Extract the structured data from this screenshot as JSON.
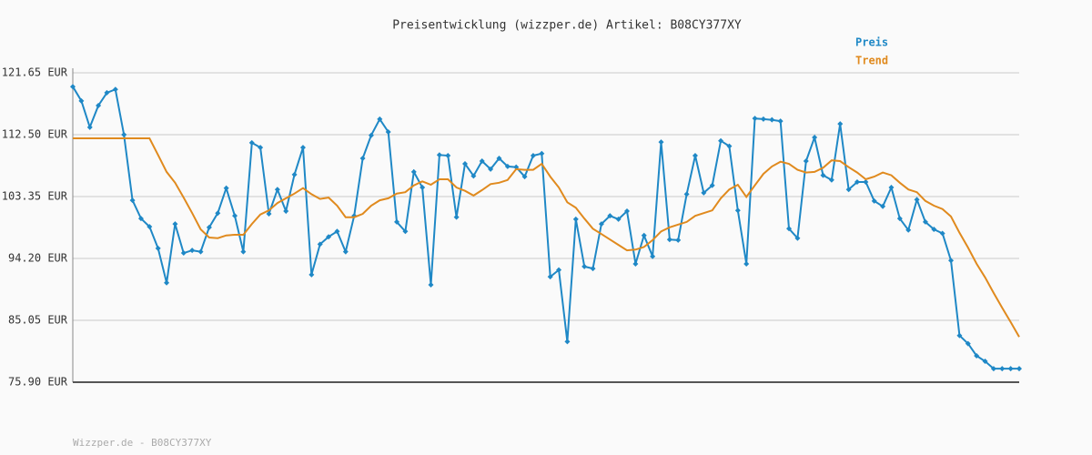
{
  "chart_data": {
    "type": "line",
    "title": "Preisentwicklung (wizzper.de) Artikel: B08CY377XY",
    "footer": "Wizzper.de - B08CY377XY",
    "legend": "upper right",
    "grid": true,
    "categories": [
      null,
      null,
      null,
      null,
      null,
      null,
      null,
      null,
      null,
      null,
      null,
      null,
      null,
      null,
      null,
      null,
      null,
      null,
      null,
      null,
      null,
      null,
      null,
      null,
      null,
      null,
      null,
      null,
      null,
      null,
      null,
      null,
      null,
      null,
      null,
      null,
      null,
      null,
      null,
      null,
      null,
      null,
      null,
      null,
      null,
      null,
      null,
      null,
      null,
      null,
      null,
      null,
      null,
      null,
      null,
      null,
      null,
      null,
      null,
      null,
      null,
      null,
      null,
      null,
      null,
      null,
      null,
      null,
      null,
      null,
      null,
      null,
      null,
      null,
      null,
      null,
      null,
      null,
      null,
      null,
      null,
      null,
      null,
      null,
      null,
      null,
      null,
      null,
      null,
      null,
      null,
      null,
      null,
      null,
      null,
      null,
      null,
      null,
      null,
      null,
      null,
      null,
      null,
      null,
      null,
      null,
      null,
      null,
      null,
      null,
      null,
      null
    ],
    "ylim": [
      75.9,
      121.65
    ],
    "yticks": [
      {
        "value": 75.9,
        "label": "75.90 EUR"
      },
      {
        "value": 85.05,
        "label": "85.05 EUR"
      },
      {
        "value": 94.2,
        "label": "94.20 EUR"
      },
      {
        "value": 103.35,
        "label": "103.35 EUR"
      },
      {
        "value": 112.5,
        "label": "112.50 EUR"
      },
      {
        "value": 121.65,
        "label": "121.65 EUR"
      }
    ],
    "series": [
      {
        "name": "Preis",
        "color": "#1f88c6",
        "markers": true,
        "values": [
          119.6,
          117.5,
          113.6,
          116.8,
          118.7,
          119.2,
          112.5,
          102.8,
          100.1,
          98.9,
          95.7,
          90.6,
          99.3,
          95.0,
          95.4,
          95.2,
          98.8,
          100.9,
          104.6,
          100.5,
          95.2,
          111.3,
          110.6,
          100.8,
          104.4,
          101.2,
          106.6,
          110.6,
          91.8,
          96.3,
          97.4,
          98.2,
          95.2,
          100.5,
          109.0,
          112.4,
          114.8,
          112.9,
          99.6,
          98.2,
          107.0,
          104.7,
          90.3,
          109.5,
          109.4,
          100.3,
          108.2,
          106.4,
          108.6,
          107.4,
          109.0,
          107.8,
          107.7,
          106.3,
          109.4,
          109.7,
          91.5,
          92.5,
          81.9,
          100.0,
          93.0,
          92.7,
          99.3,
          100.5,
          100.0,
          101.2,
          93.4,
          97.6,
          94.5,
          111.4,
          97.0,
          96.9,
          103.7,
          109.4,
          103.9,
          105.0,
          111.6,
          110.8,
          101.3,
          93.4,
          114.9,
          114.8,
          114.7,
          114.5,
          98.6,
          97.2,
          108.6,
          112.1,
          106.5,
          105.8,
          114.1,
          104.4,
          105.5,
          105.5,
          102.7,
          101.9,
          104.7,
          100.1,
          98.4,
          102.9,
          99.6,
          98.5,
          97.9,
          93.9,
          82.8,
          81.6,
          79.8,
          79.0,
          77.9,
          77.9,
          77.9,
          77.9
        ]
      },
      {
        "name": "Trend",
        "color": "#e08a1e",
        "markers": false,
        "values": [
          111.96,
          111.96,
          111.96,
          111.96,
          111.96,
          111.96,
          111.96,
          111.96,
          111.96,
          111.96,
          109.5,
          107.0,
          105.4,
          103.2,
          100.9,
          98.5,
          97.3,
          97.2,
          97.6,
          97.7,
          97.7,
          99.3,
          100.7,
          101.3,
          102.4,
          103.1,
          103.8,
          104.6,
          103.7,
          103.0,
          103.2,
          102.0,
          100.3,
          100.3,
          100.8,
          102.0,
          102.8,
          103.1,
          103.8,
          104.0,
          105.0,
          105.6,
          105.1,
          105.9,
          105.9,
          104.7,
          104.2,
          103.5,
          104.3,
          105.2,
          105.4,
          105.8,
          107.4,
          107.3,
          107.3,
          108.2,
          106.3,
          104.7,
          102.5,
          101.7,
          100.1,
          98.6,
          97.8,
          97.0,
          96.2,
          95.4,
          95.5,
          95.9,
          96.9,
          98.2,
          98.8,
          99.2,
          99.6,
          100.5,
          100.9,
          101.3,
          103.1,
          104.4,
          105.1,
          103.3,
          105.0,
          106.7,
          107.8,
          108.5,
          108.2,
          107.3,
          106.9,
          107.0,
          107.6,
          108.7,
          108.6,
          107.7,
          106.9,
          105.9,
          106.3,
          106.9,
          106.5,
          105.4,
          104.4,
          104.0,
          102.7,
          102.0,
          101.5,
          100.4,
          98.0,
          95.8,
          93.4,
          91.4,
          89.1,
          86.9,
          84.8,
          82.6
        ]
      }
    ]
  }
}
